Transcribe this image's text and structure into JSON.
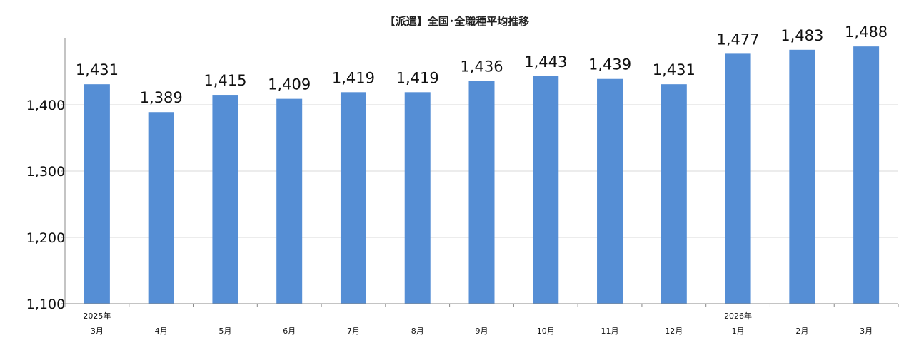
{
  "chart_data": {
    "type": "bar",
    "title": "【派遣】全国･全職種平均推移",
    "categories": [
      "3月",
      "4月",
      "5月",
      "6月",
      "7月",
      "8月",
      "9月",
      "10月",
      "11月",
      "12月",
      "1月",
      "2月",
      "3月"
    ],
    "year_labels": {
      "0": "2025年",
      "10": "2026年"
    },
    "values": [
      1431,
      1389,
      1415,
      1409,
      1419,
      1419,
      1436,
      1443,
      1439,
      1431,
      1477,
      1483,
      1488
    ],
    "value_labels": [
      "1,431",
      "1,389",
      "1,415",
      "1,409",
      "1,419",
      "1,419",
      "1,436",
      "1,443",
      "1,439",
      "1,431",
      "1,477",
      "1,483",
      "1,488"
    ],
    "ylim": [
      1100,
      1500
    ],
    "yticks": [
      1100,
      1200,
      1300,
      1400
    ],
    "ytick_labels": [
      "1,100",
      "1,200",
      "1,300",
      "1,400"
    ],
    "xlabel": "",
    "ylabel": "",
    "grid": true,
    "legend": "none",
    "bar_color": "#558ED5"
  }
}
